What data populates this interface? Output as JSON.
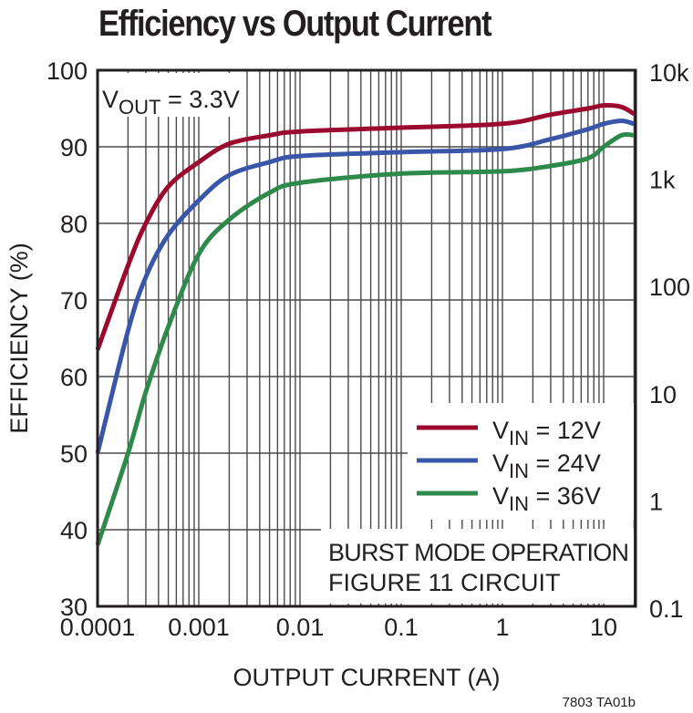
{
  "chart_data": {
    "type": "line",
    "title": "Efficiency vs Output Current",
    "xlabel": "OUTPUT CURRENT (A)",
    "ylabel": "EFFICIENCY (%)",
    "x_scale": "log",
    "xlim": [
      0.0001,
      20
    ],
    "ylim": [
      30,
      100
    ],
    "x_ticks": [
      "0.0001",
      "0.001",
      "0.01",
      "0.1",
      "1",
      "10"
    ],
    "y_ticks": [
      "30",
      "40",
      "50",
      "60",
      "70",
      "80",
      "90",
      "100"
    ],
    "y2_ticks": [
      "0.1",
      "1",
      "10",
      "100",
      "1k",
      "10k"
    ],
    "grid": true,
    "legend_position": "lower right (inside)",
    "annotations": [
      "VOUT = 3.3V",
      "BURST MODE OPERATION",
      "FIGURE 11 CIRCUIT"
    ],
    "footnote": "7803 TA01b",
    "x": [
      0.0001,
      0.0002,
      0.0003,
      0.0005,
      0.001,
      0.002,
      0.005,
      0.01,
      0.1,
      1,
      3,
      7,
      10,
      15,
      20
    ],
    "series": [
      {
        "name": "VIN = 12V",
        "color": "#9b0a2e",
        "values": [
          63.5,
          74.5,
          80,
          84.8,
          88,
          90.4,
          91.5,
          92,
          92.5,
          93,
          94.2,
          95,
          95.4,
          95.2,
          94.3
        ]
      },
      {
        "name": "VIN = 24V",
        "color": "#3a56a8",
        "values": [
          50,
          66,
          73,
          78.5,
          83,
          86.3,
          88,
          88.8,
          89.3,
          89.7,
          91,
          92.3,
          93,
          93.4,
          93
        ]
      },
      {
        "name": "VIN = 36V",
        "color": "#2e8a4a",
        "values": [
          38,
          50,
          58,
          66.5,
          76,
          80.5,
          84,
          85.3,
          86.5,
          86.8,
          87.5,
          88.5,
          90,
          91.5,
          91.5
        ]
      }
    ]
  },
  "labels": {
    "title": "Efficiency vs Output Current",
    "xlabel": "OUTPUT CURRENT (A)",
    "ylabel": "EFFICIENCY (%)",
    "vout_prefix": "V",
    "vout_sub": "OUT",
    "vout_value": " = 3.3V",
    "legend_prefix": "V",
    "legend_sub": "IN",
    "legend_values": [
      " = 12V",
      " = 24V",
      " = 36V"
    ],
    "note_line1": "BURST MODE OPERATION",
    "note_line2": "FIGURE 11 CIRCUIT",
    "footnote": "7803 TA01b"
  }
}
